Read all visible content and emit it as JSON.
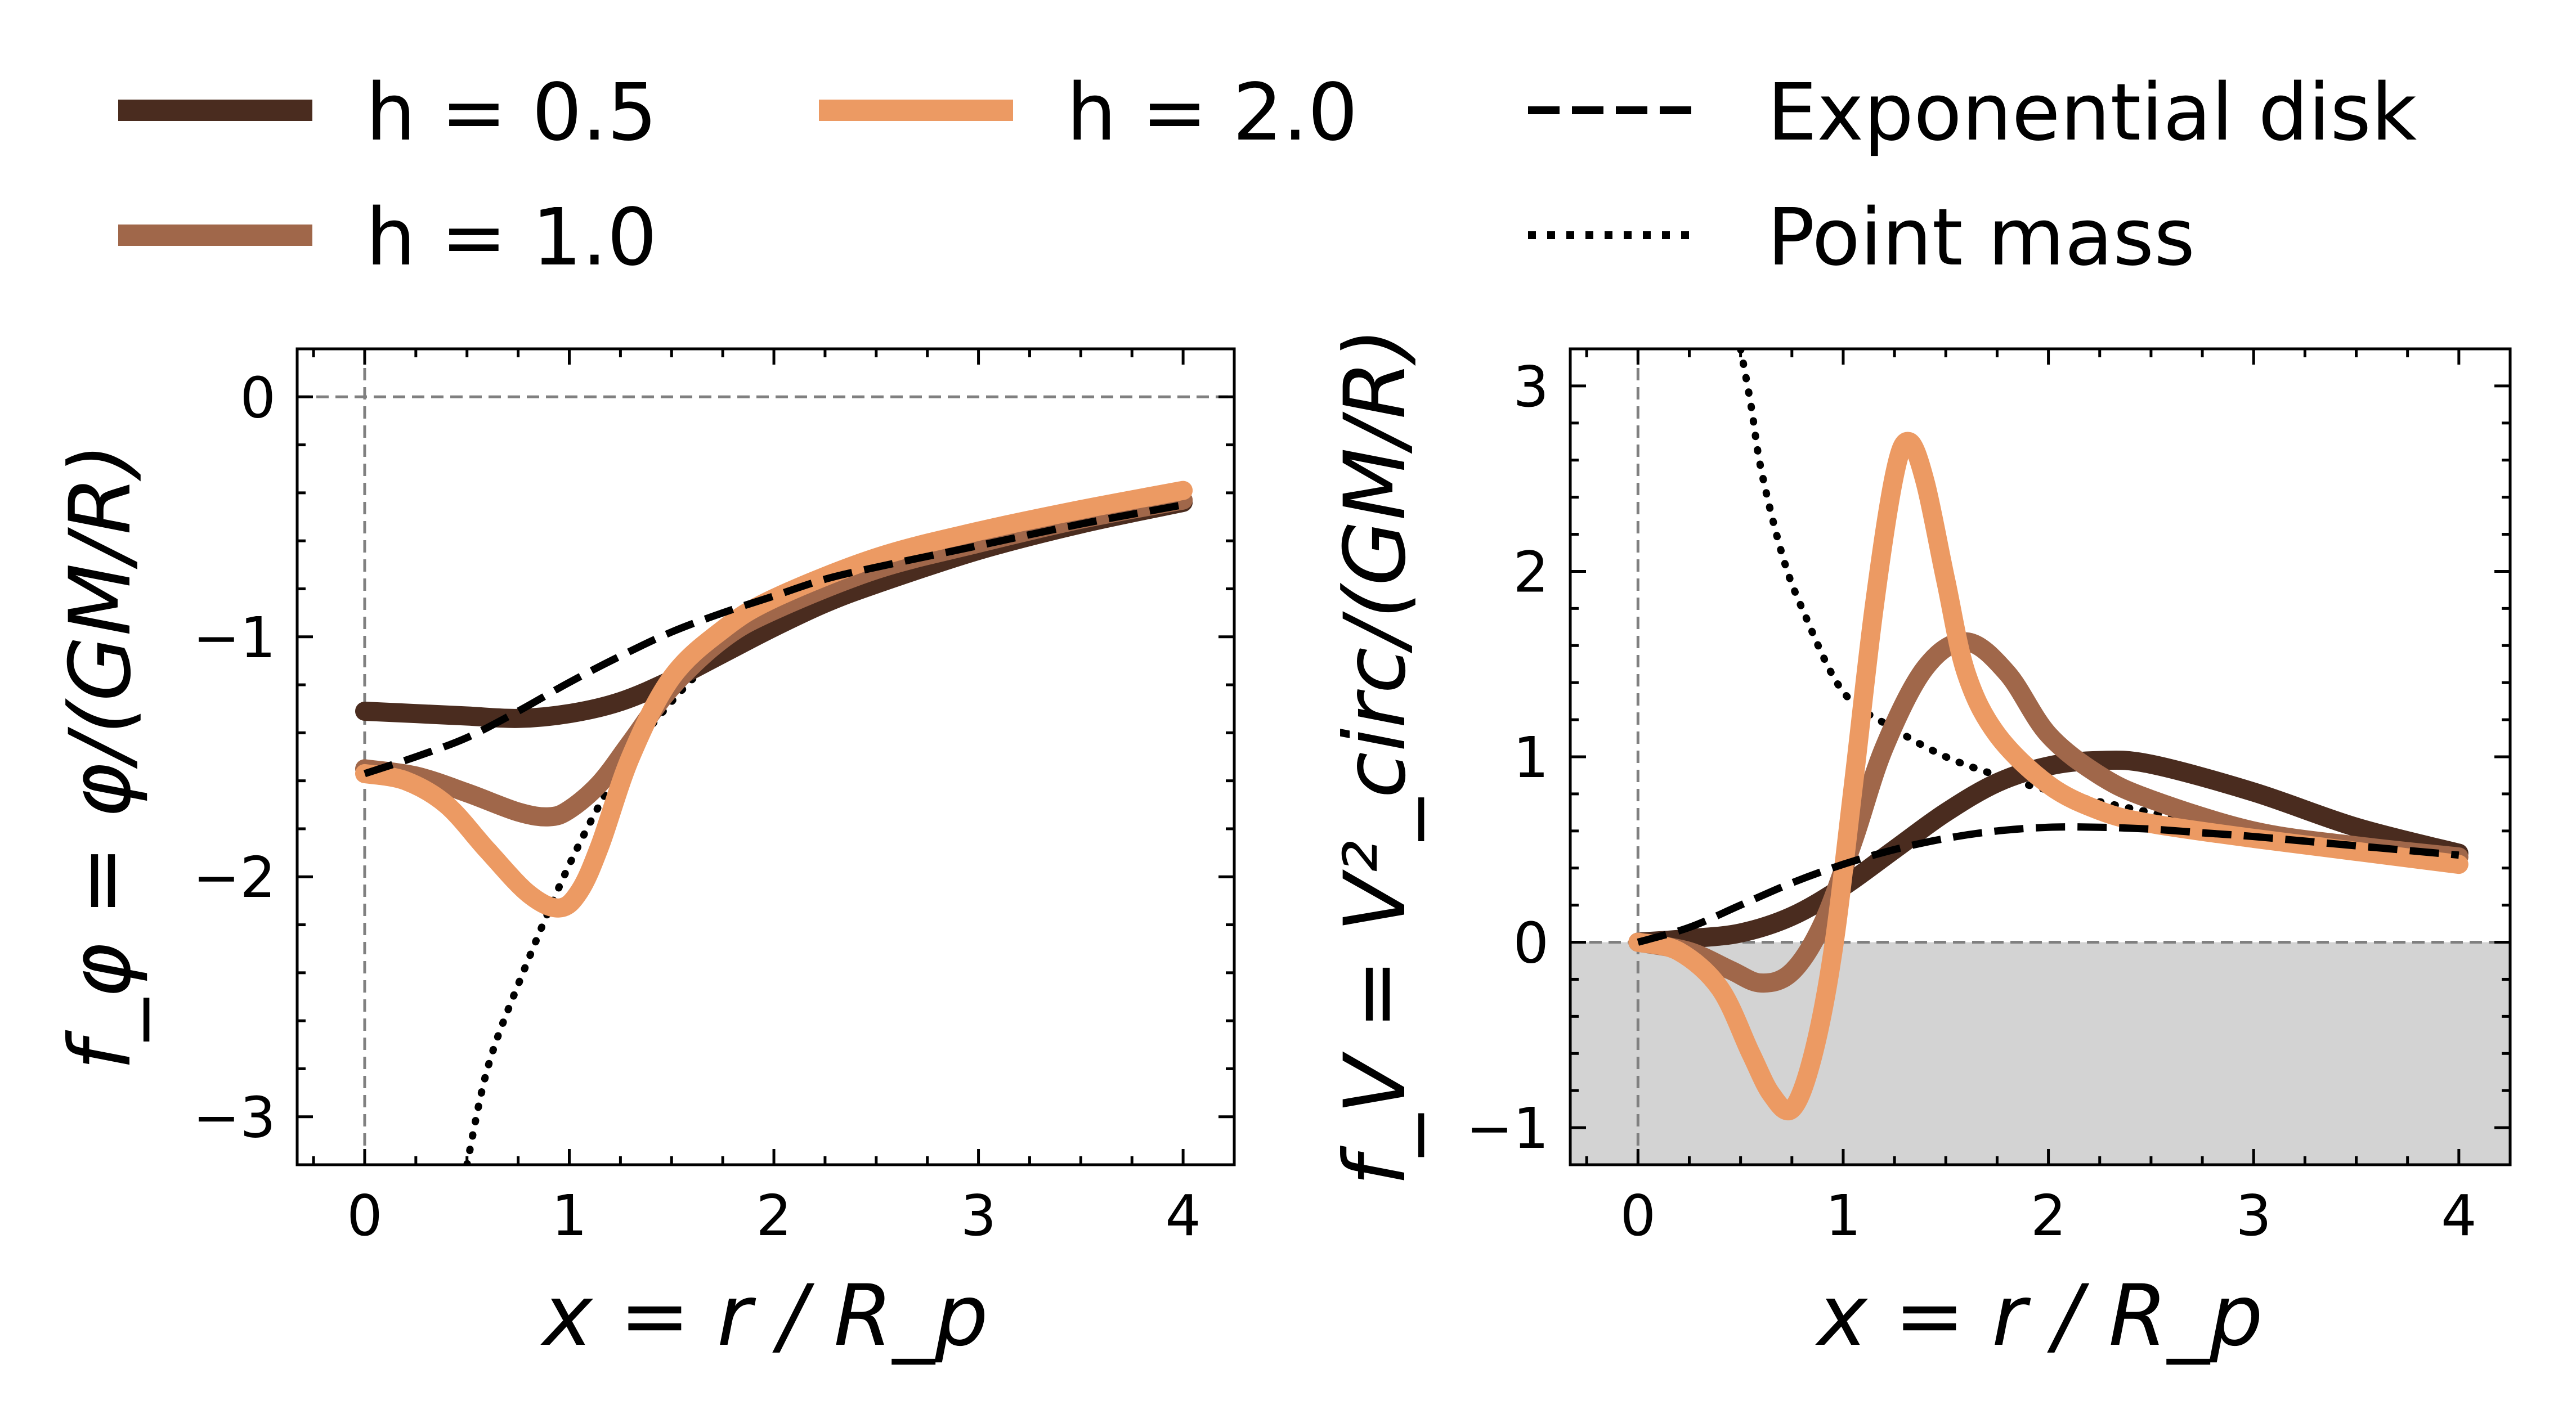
{
  "legend": {
    "entries": [
      {
        "key": "h05",
        "label": "h = 0.5",
        "color": "#4a2c1f",
        "style": "solid"
      },
      {
        "key": "h10",
        "label": "h = 1.0",
        "color": "#a0674a",
        "style": "solid"
      },
      {
        "key": "h20",
        "label": "h = 2.0",
        "color": "#ec9a63",
        "style": "solid"
      },
      {
        "key": "exp",
        "label": "Exponential disk",
        "color": "#000000",
        "style": "dashed"
      },
      {
        "key": "pm",
        "label": "Point mass",
        "color": "#000000",
        "style": "dotted"
      }
    ]
  },
  "chart_data": [
    {
      "type": "line",
      "panel": "left",
      "ylabel": "f_φ = φ/(GM/R)",
      "xlabel": "x = r / R_p",
      "xlim": [
        -0.33,
        4.25
      ],
      "ylim": [
        -3.2,
        0.2
      ],
      "xticks": [
        0,
        1,
        2,
        3,
        4
      ],
      "xtick_labels": [
        "0",
        "1",
        "2",
        "3",
        "4"
      ],
      "yticks": [
        0,
        -1,
        -2,
        -3
      ],
      "ytick_labels": [
        "0",
        "−1",
        "−2",
        "−3"
      ],
      "reference_lines": {
        "x": 0,
        "y": 0
      },
      "series": [
        {
          "key": "h05",
          "name": "h = 0.5",
          "x": [
            0,
            0.25,
            0.5,
            0.75,
            1.0,
            1.25,
            1.5,
            1.75,
            2.0,
            2.25,
            2.5,
            3.0,
            3.5,
            4.0
          ],
          "y": [
            -1.31,
            -1.32,
            -1.33,
            -1.34,
            -1.32,
            -1.27,
            -1.18,
            -1.07,
            -0.96,
            -0.86,
            -0.78,
            -0.64,
            -0.53,
            -0.44
          ]
        },
        {
          "key": "h10",
          "name": "h = 1.0",
          "x": [
            0,
            0.25,
            0.5,
            0.75,
            0.9,
            1.0,
            1.15,
            1.3,
            1.5,
            1.75,
            2.0,
            2.5,
            3.0,
            3.5,
            4.0
          ],
          "y": [
            -1.55,
            -1.58,
            -1.65,
            -1.73,
            -1.75,
            -1.72,
            -1.61,
            -1.44,
            -1.21,
            -1.01,
            -0.89,
            -0.72,
            -0.61,
            -0.51,
            -0.43
          ]
        },
        {
          "key": "h20",
          "name": "h = 2.0",
          "x": [
            0,
            0.2,
            0.4,
            0.6,
            0.8,
            0.95,
            1.05,
            1.15,
            1.3,
            1.5,
            1.75,
            2.0,
            2.5,
            3.0,
            3.5,
            4.0
          ],
          "y": [
            -1.57,
            -1.6,
            -1.7,
            -1.89,
            -2.07,
            -2.13,
            -2.06,
            -1.87,
            -1.5,
            -1.17,
            -0.97,
            -0.84,
            -0.67,
            -0.56,
            -0.47,
            -0.39
          ]
        },
        {
          "key": "exp",
          "name": "Exponential disk",
          "x": [
            0,
            0.25,
            0.5,
            0.75,
            1.0,
            1.25,
            1.5,
            1.75,
            2.0,
            2.25,
            2.5,
            3.0,
            3.5,
            4.0
          ],
          "y": [
            -1.57,
            -1.5,
            -1.42,
            -1.31,
            -1.19,
            -1.08,
            -0.98,
            -0.9,
            -0.83,
            -0.76,
            -0.71,
            -0.62,
            -0.53,
            -0.45
          ]
        },
        {
          "key": "pm",
          "name": "Point mass",
          "x": [
            0.5,
            0.6,
            0.75,
            1.0,
            1.25,
            1.5,
            1.75,
            2.0,
            2.5,
            3.0,
            3.5,
            4.0
          ],
          "y": [
            -3.2,
            -2.8,
            -2.45,
            -1.95,
            -1.55,
            -1.27,
            -1.06,
            -0.92,
            -0.73,
            -0.6,
            -0.5,
            -0.43
          ]
        }
      ]
    },
    {
      "type": "line",
      "panel": "right",
      "ylabel": "f_V = V²_circ/(GM/R)",
      "xlabel": "x = r / R_p",
      "xlim": [
        -0.33,
        4.25
      ],
      "ylim": [
        -1.2,
        3.2
      ],
      "xticks": [
        0,
        1,
        2,
        3,
        4
      ],
      "xtick_labels": [
        "0",
        "1",
        "2",
        "3",
        "4"
      ],
      "yticks": [
        3,
        2,
        1,
        0,
        -1
      ],
      "ytick_labels": [
        "3",
        "2",
        "1",
        "0",
        "−1"
      ],
      "reference_lines": {
        "x": 0,
        "y": 0
      },
      "shaded_region": {
        "ymin": -1.2,
        "ymax": 0,
        "color": "#d3d3d3"
      },
      "series": [
        {
          "key": "h05",
          "name": "h = 0.5",
          "x": [
            0,
            0.25,
            0.5,
            0.75,
            1.0,
            1.25,
            1.5,
            1.75,
            2.0,
            2.25,
            2.5,
            3.0,
            3.5,
            4.0
          ],
          "y": [
            0,
            0.02,
            0.05,
            0.14,
            0.3,
            0.5,
            0.7,
            0.86,
            0.95,
            0.98,
            0.96,
            0.81,
            0.62,
            0.48
          ]
        },
        {
          "key": "h10",
          "name": "h = 1.0",
          "x": [
            0,
            0.25,
            0.45,
            0.6,
            0.75,
            0.9,
            1.05,
            1.2,
            1.4,
            1.6,
            1.8,
            2.0,
            2.25,
            2.5,
            3.0,
            3.5,
            4.0
          ],
          "y": [
            0,
            -0.05,
            -0.15,
            -0.22,
            -0.16,
            0.1,
            0.55,
            1.05,
            1.48,
            1.62,
            1.45,
            1.12,
            0.9,
            0.77,
            0.6,
            0.52,
            0.46
          ]
        },
        {
          "key": "h20",
          "name": "h = 2.0",
          "x": [
            0,
            0.2,
            0.4,
            0.55,
            0.65,
            0.75,
            0.85,
            0.95,
            1.05,
            1.15,
            1.25,
            1.32,
            1.4,
            1.5,
            1.6,
            1.75,
            2.0,
            2.25,
            2.5,
            3.0,
            3.5,
            4.0
          ],
          "y": [
            0,
            -0.05,
            -0.25,
            -0.6,
            -0.82,
            -0.9,
            -0.62,
            -0.05,
            0.85,
            1.8,
            2.52,
            2.7,
            2.48,
            1.95,
            1.45,
            1.12,
            0.85,
            0.71,
            0.64,
            0.56,
            0.49,
            0.42
          ]
        },
        {
          "key": "exp",
          "name": "Exponential disk",
          "x": [
            0,
            0.25,
            0.5,
            0.75,
            1.0,
            1.25,
            1.5,
            1.75,
            2.0,
            2.25,
            2.5,
            2.75,
            3.0,
            3.5,
            4.0
          ],
          "y": [
            0,
            0.08,
            0.2,
            0.32,
            0.42,
            0.5,
            0.56,
            0.6,
            0.62,
            0.62,
            0.61,
            0.59,
            0.57,
            0.52,
            0.47
          ]
        },
        {
          "key": "pm",
          "name": "Point mass",
          "x": [
            0.5,
            0.55,
            0.6,
            0.7,
            0.8,
            1.0,
            1.25,
            1.5,
            1.75,
            2.0,
            2.5,
            3.0,
            3.5,
            4.0
          ],
          "y": [
            3.2,
            2.9,
            2.55,
            2.1,
            1.8,
            1.35,
            1.15,
            1.0,
            0.9,
            0.82,
            0.7,
            0.6,
            0.52,
            0.47
          ]
        }
      ]
    }
  ]
}
